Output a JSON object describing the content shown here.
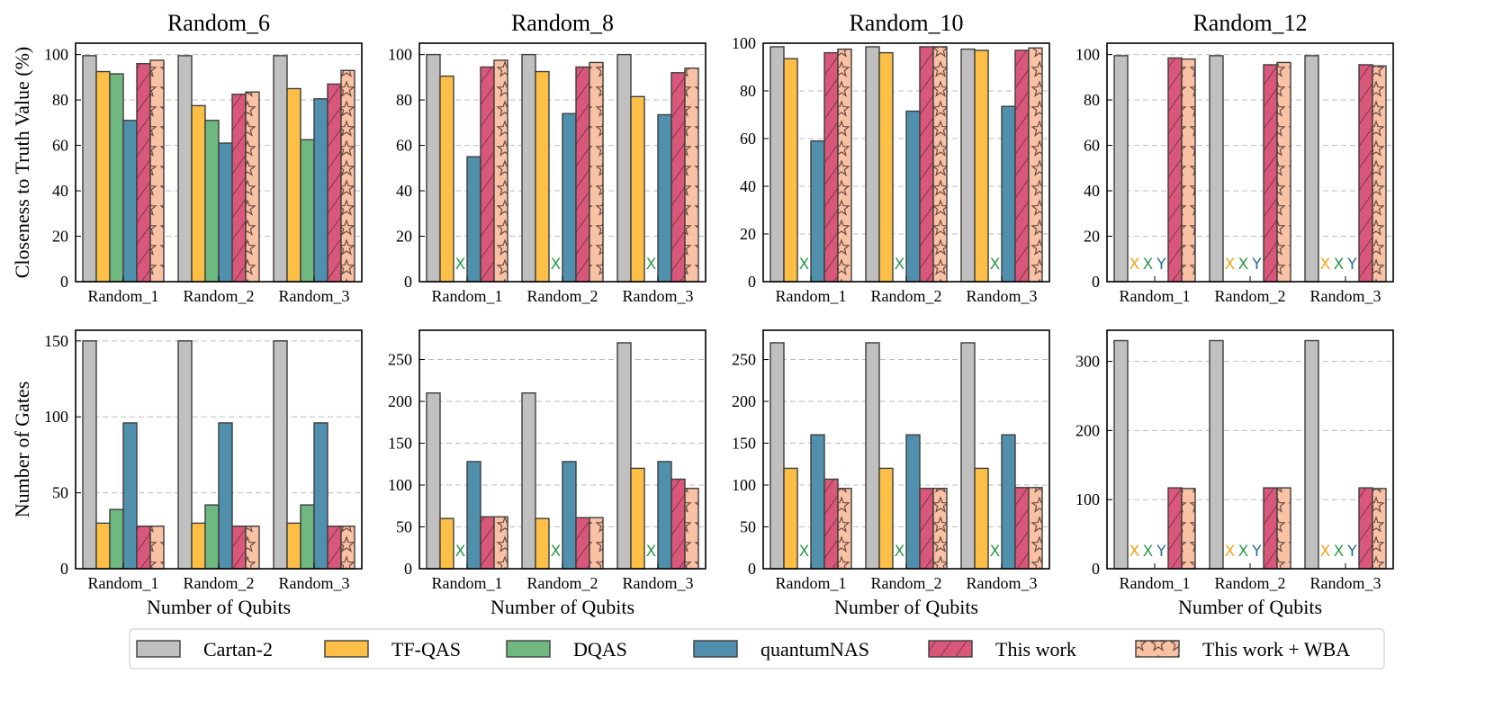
{
  "chart_data": {
    "type": "bar",
    "colors": {
      "Cartan-2": "#c0c0c0",
      "TF-QAS": "#fdbf45",
      "DQAS": "#6fb880",
      "quantumNAS": "#5190ad",
      "This work": "#d9577a",
      "This work + WBA": "#f9c2a5"
    },
    "legend": {
      "position": "bottom",
      "entries": [
        "Cartan-2",
        "TF-QAS",
        "DQAS",
        "quantumNAS",
        "This work",
        "This work + WBA"
      ]
    },
    "grid": "y-dashed",
    "missing_marker_colors": {
      "X_orange": "#f2a51c",
      "X_green": "#2e9a4c",
      "Y_blue": "#2b6f95"
    },
    "panels": [
      {
        "title": "Random_6",
        "ylabel": "Closeness to Truth Value (%)",
        "xlabel": "",
        "ylim": [
          0,
          105
        ],
        "yticks": [
          0,
          20,
          40,
          60,
          80,
          100
        ],
        "categories": [
          "Random_1",
          "Random_2",
          "Random_3"
        ],
        "series": [
          {
            "name": "Cartan-2",
            "values": [
              99.5,
              99.5,
              99.5
            ]
          },
          {
            "name": "TF-QAS",
            "values": [
              92.5,
              77.5,
              85
            ]
          },
          {
            "name": "DQAS",
            "values": [
              91.5,
              71,
              62.5
            ]
          },
          {
            "name": "quantumNAS",
            "values": [
              71,
              61,
              80.5
            ]
          },
          {
            "name": "This work",
            "values": [
              96,
              82.5,
              87
            ]
          },
          {
            "name": "This work + WBA",
            "values": [
              97.5,
              83.5,
              93
            ]
          }
        ]
      },
      {
        "title": "Random_8",
        "ylabel": "",
        "xlabel": "",
        "ylim": [
          0,
          105
        ],
        "yticks": [
          0,
          20,
          40,
          60,
          80,
          100
        ],
        "categories": [
          "Random_1",
          "Random_2",
          "Random_3"
        ],
        "series": [
          {
            "name": "Cartan-2",
            "values": [
              100,
              100,
              100
            ]
          },
          {
            "name": "TF-QAS",
            "values": [
              90.5,
              92.5,
              81.5
            ]
          },
          {
            "name": "DQAS",
            "values": [
              null,
              null,
              null
            ],
            "missing_labels": [
              "X",
              "X",
              "X"
            ]
          },
          {
            "name": "quantumNAS",
            "values": [
              55,
              74,
              73.5
            ]
          },
          {
            "name": "This work",
            "values": [
              94.5,
              94.5,
              92
            ]
          },
          {
            "name": "This work + WBA",
            "values": [
              97.5,
              96.5,
              94
            ]
          }
        ]
      },
      {
        "title": "Random_10",
        "ylabel": "",
        "xlabel": "",
        "ylim": [
          0,
          100
        ],
        "yticks": [
          0,
          20,
          40,
          60,
          80,
          100
        ],
        "categories": [
          "Random_1",
          "Random_2",
          "Random_3"
        ],
        "series": [
          {
            "name": "Cartan-2",
            "values": [
              98.5,
              98.5,
              97.5
            ]
          },
          {
            "name": "TF-QAS",
            "values": [
              93.5,
              96,
              97
            ]
          },
          {
            "name": "DQAS",
            "values": [
              null,
              null,
              null
            ],
            "missing_labels": [
              "X",
              "X",
              "X"
            ]
          },
          {
            "name": "quantumNAS",
            "values": [
              59,
              71.5,
              73.5
            ]
          },
          {
            "name": "This work",
            "values": [
              96,
              98.5,
              97
            ]
          },
          {
            "name": "This work + WBA",
            "values": [
              97.5,
              98.5,
              98
            ]
          }
        ]
      },
      {
        "title": "Random_12",
        "ylabel": "",
        "xlabel": "",
        "ylim": [
          0,
          105
        ],
        "yticks": [
          0,
          20,
          40,
          60,
          80,
          100
        ],
        "categories": [
          "Random_1",
          "Random_2",
          "Random_3"
        ],
        "series": [
          {
            "name": "Cartan-2",
            "values": [
              99.5,
              99.5,
              99.5
            ]
          },
          {
            "name": "TF-QAS",
            "values": [
              null,
              null,
              null
            ],
            "missing_labels": [
              "X",
              "X",
              "X"
            ]
          },
          {
            "name": "DQAS",
            "values": [
              null,
              null,
              null
            ],
            "missing_labels": [
              "X",
              "X",
              "X"
            ]
          },
          {
            "name": "quantumNAS",
            "values": [
              null,
              null,
              null
            ],
            "missing_labels": [
              "Y",
              "Y",
              "Y"
            ]
          },
          {
            "name": "This work",
            "values": [
              98.5,
              95.5,
              95.5
            ]
          },
          {
            "name": "This work + WBA",
            "values": [
              98,
              96.5,
              95
            ]
          }
        ]
      },
      {
        "title": "",
        "ylabel": "Number of Gates",
        "xlabel": "Number of Qubits",
        "ylim": [
          0,
          157
        ],
        "yticks": [
          0,
          50,
          100,
          150
        ],
        "categories": [
          "Random_1",
          "Random_2",
          "Random_3"
        ],
        "series": [
          {
            "name": "Cartan-2",
            "values": [
              150,
              150,
              150
            ]
          },
          {
            "name": "TF-QAS",
            "values": [
              30,
              30,
              30
            ]
          },
          {
            "name": "DQAS",
            "values": [
              39,
              42,
              42
            ]
          },
          {
            "name": "quantumNAS",
            "values": [
              96,
              96,
              96
            ]
          },
          {
            "name": "This work",
            "values": [
              28,
              28,
              28
            ]
          },
          {
            "name": "This work + WBA",
            "values": [
              28,
              28,
              28
            ]
          }
        ]
      },
      {
        "title": "",
        "ylabel": "",
        "xlabel": "Number of Qubits",
        "ylim": [
          0,
          285
        ],
        "yticks": [
          0,
          50,
          100,
          150,
          200,
          250
        ],
        "categories": [
          "Random_1",
          "Random_2",
          "Random_3"
        ],
        "series": [
          {
            "name": "Cartan-2",
            "values": [
              210,
              210,
              270
            ]
          },
          {
            "name": "TF-QAS",
            "values": [
              60,
              60,
              120
            ]
          },
          {
            "name": "DQAS",
            "values": [
              null,
              null,
              null
            ],
            "missing_labels": [
              "X",
              "X",
              "X"
            ]
          },
          {
            "name": "quantumNAS",
            "values": [
              128,
              128,
              128
            ]
          },
          {
            "name": "This work",
            "values": [
              62,
              61,
              107
            ]
          },
          {
            "name": "This work + WBA",
            "values": [
              62,
              61,
              96
            ]
          }
        ]
      },
      {
        "title": "",
        "ylabel": "",
        "xlabel": "Number of Qubits",
        "ylim": [
          0,
          285
        ],
        "yticks": [
          0,
          50,
          100,
          150,
          200,
          250
        ],
        "categories": [
          "Random_1",
          "Random_2",
          "Random_3"
        ],
        "series": [
          {
            "name": "Cartan-2",
            "values": [
              270,
              270,
              270
            ]
          },
          {
            "name": "TF-QAS",
            "values": [
              120,
              120,
              120
            ]
          },
          {
            "name": "DQAS",
            "values": [
              null,
              null,
              null
            ],
            "missing_labels": [
              "X",
              "X",
              "X"
            ]
          },
          {
            "name": "quantumNAS",
            "values": [
              160,
              160,
              160
            ]
          },
          {
            "name": "This work",
            "values": [
              107,
              96,
              97
            ]
          },
          {
            "name": "This work + WBA",
            "values": [
              96,
              96,
              97
            ]
          }
        ]
      },
      {
        "title": "",
        "ylabel": "",
        "xlabel": "Number of Qubits",
        "ylim": [
          0,
          345
        ],
        "yticks": [
          0,
          100,
          200,
          300
        ],
        "categories": [
          "Random_1",
          "Random_2",
          "Random_3"
        ],
        "series": [
          {
            "name": "Cartan-2",
            "values": [
              330,
              330,
              330
            ]
          },
          {
            "name": "TF-QAS",
            "values": [
              null,
              null,
              null
            ],
            "missing_labels": [
              "X",
              "X",
              "X"
            ]
          },
          {
            "name": "DQAS",
            "values": [
              null,
              null,
              null
            ],
            "missing_labels": [
              "X",
              "X",
              "X"
            ]
          },
          {
            "name": "quantumNAS",
            "values": [
              null,
              null,
              null
            ],
            "missing_labels": [
              "Y",
              "Y",
              "Y"
            ]
          },
          {
            "name": "This work",
            "values": [
              117,
              117,
              117
            ]
          },
          {
            "name": "This work + WBA",
            "values": [
              116,
              117,
              116
            ]
          }
        ]
      }
    ]
  }
}
